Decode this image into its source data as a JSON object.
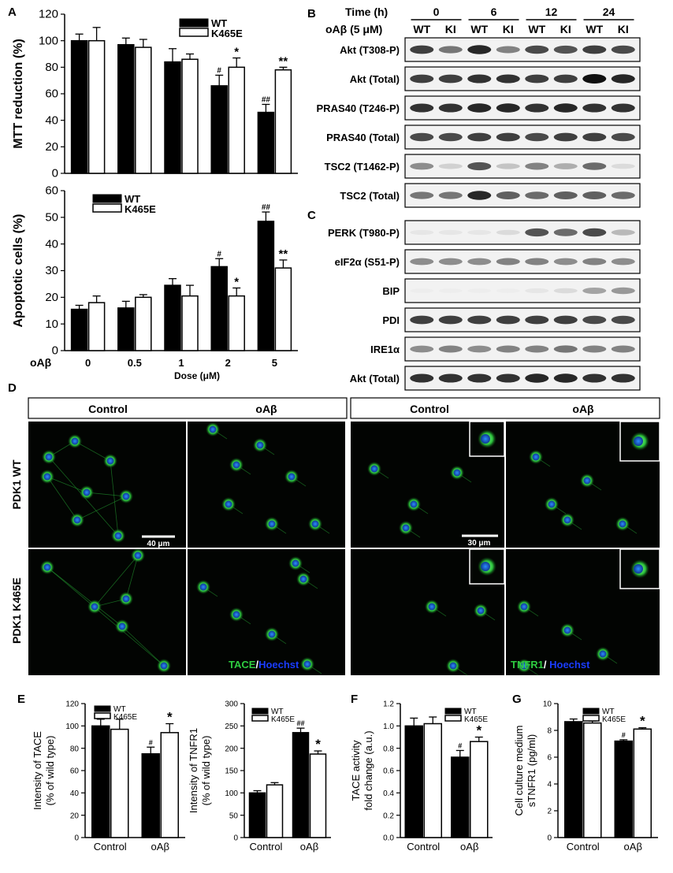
{
  "panels": {
    "A": "A",
    "B": "B",
    "C": "C",
    "D": "D",
    "E": "E",
    "F": "F",
    "G": "G"
  },
  "legend": {
    "wt": "WT",
    "ki": "K465E"
  },
  "chart_data": [
    {
      "id": "mtt",
      "type": "bar",
      "ylabel": "MTT reduction (%)",
      "ylim": [
        0,
        120
      ],
      "yticks": [
        0,
        20,
        40,
        60,
        80,
        100,
        120
      ],
      "categories": [
        "0",
        "0.5",
        "1",
        "2",
        "5"
      ],
      "series": [
        {
          "name": "WT",
          "values": [
            100,
            97,
            84,
            66,
            46
          ],
          "errors": [
            5,
            5,
            10,
            8,
            6
          ],
          "marks": [
            "",
            "",
            "",
            "#",
            "##"
          ]
        },
        {
          "name": "K465E",
          "values": [
            100,
            95,
            86,
            80,
            78
          ],
          "errors": [
            10,
            6,
            4,
            7,
            2
          ],
          "marks": [
            "",
            "",
            "",
            "*",
            "**"
          ]
        }
      ]
    },
    {
      "id": "apoptosis",
      "type": "bar",
      "ylabel": "Apoptotic cells (%)",
      "xprefix": "oAβ",
      "xlabel": "Dose  (μM)",
      "ylim": [
        0,
        60
      ],
      "yticks": [
        0,
        10,
        20,
        30,
        40,
        50,
        60
      ],
      "categories": [
        "0",
        "0.5",
        "1",
        "2",
        "5"
      ],
      "series": [
        {
          "name": "WT",
          "values": [
            15.5,
            16,
            24.5,
            31.5,
            48.5
          ],
          "errors": [
            1.5,
            2.5,
            2.5,
            3,
            3.5
          ],
          "marks": [
            "",
            "",
            "",
            "#",
            "##"
          ]
        },
        {
          "name": "K465E",
          "values": [
            18,
            20,
            20.5,
            20.5,
            31
          ],
          "errors": [
            2.5,
            1,
            4,
            3,
            3
          ],
          "marks": [
            "",
            "",
            "",
            "*",
            "**"
          ]
        }
      ]
    },
    {
      "id": "tace_intensity",
      "type": "bar",
      "ylabel": "Intensity of TACE",
      "ylabel2": "(% of wild type)",
      "ylim": [
        0,
        120
      ],
      "yticks": [
        0,
        20,
        40,
        60,
        80,
        100,
        120
      ],
      "categories": [
        "Control",
        "oAβ"
      ],
      "series": [
        {
          "name": "WT",
          "values": [
            100,
            75
          ],
          "errors": [
            6,
            6
          ],
          "marks": [
            "",
            "#"
          ]
        },
        {
          "name": "K465E",
          "values": [
            97,
            94
          ],
          "errors": [
            9,
            8
          ],
          "marks": [
            "",
            "*"
          ]
        }
      ]
    },
    {
      "id": "tnfr1_intensity",
      "type": "bar",
      "ylabel": "Intensity of TNFR1",
      "ylabel2": "(% of wild type)",
      "ylim": [
        0,
        300
      ],
      "yticks": [
        0,
        50,
        100,
        150,
        200,
        250,
        300
      ],
      "categories": [
        "Control",
        "oAβ"
      ],
      "series": [
        {
          "name": "WT",
          "values": [
            100,
            235
          ],
          "errors": [
            5,
            10
          ],
          "marks": [
            "",
            "##"
          ]
        },
        {
          "name": "K465E",
          "values": [
            118,
            187
          ],
          "errors": [
            5,
            7
          ],
          "marks": [
            "",
            "*"
          ]
        }
      ]
    },
    {
      "id": "tace_activity",
      "type": "bar",
      "ylabel": "TACE activity",
      "ylabel2": "fold change (a.u.)",
      "ylim": [
        0,
        1.2
      ],
      "yticks": [
        "0.0",
        "0.2",
        "0.4",
        "0.6",
        "0.8",
        "1.0",
        "1.2"
      ],
      "categories": [
        "Control",
        "oAβ"
      ],
      "series": [
        {
          "name": "WT",
          "values": [
            1.0,
            0.72
          ],
          "errors": [
            0.07,
            0.06
          ],
          "marks": [
            "",
            "#"
          ]
        },
        {
          "name": "K465E",
          "values": [
            1.02,
            0.86
          ],
          "errors": [
            0.06,
            0.04
          ],
          "marks": [
            "",
            "*"
          ]
        }
      ]
    },
    {
      "id": "stnfr1",
      "type": "bar",
      "ylabel": "Cell culture medium",
      "ylabel2": "sTNFR1 (pg/ml)",
      "ylim": [
        0,
        10
      ],
      "yticks": [
        0,
        2,
        4,
        6,
        8,
        10
      ],
      "categories": [
        "Control",
        "oAβ"
      ],
      "series": [
        {
          "name": "WT",
          "values": [
            8.65,
            7.2
          ],
          "errors": [
            0.2,
            0.1
          ],
          "marks": [
            "",
            "#"
          ]
        },
        {
          "name": "K465E",
          "values": [
            8.55,
            8.1
          ],
          "errors": [
            0.15,
            0.1
          ],
          "marks": [
            "",
            "*"
          ]
        }
      ]
    }
  ],
  "blots": {
    "time_label": "Time (h)",
    "times": [
      "0",
      "6",
      "12",
      "24"
    ],
    "treatment_label": "oAβ (5 μM)",
    "lanes": [
      "WT",
      "KI",
      "WT",
      "KI",
      "WT",
      "KI",
      "WT",
      "KI"
    ],
    "b_rows": [
      {
        "label": "Akt (T308-P)",
        "strength": [
          0.8,
          0.55,
          0.9,
          0.5,
          0.75,
          0.7,
          0.8,
          0.75
        ]
      },
      {
        "label": "Akt (Total)",
        "strength": [
          0.8,
          0.8,
          0.85,
          0.85,
          0.8,
          0.8,
          1.0,
          0.9
        ]
      },
      {
        "label": "PRAS40 (T246-P)",
        "strength": [
          0.85,
          0.85,
          0.9,
          0.9,
          0.85,
          0.9,
          0.85,
          0.85
        ]
      },
      {
        "label": "PRAS40 (Total)",
        "strength": [
          0.75,
          0.75,
          0.8,
          0.8,
          0.75,
          0.8,
          0.8,
          0.75
        ]
      },
      {
        "label": "TSC2 (T1462-P)",
        "strength": [
          0.45,
          0.15,
          0.7,
          0.2,
          0.5,
          0.3,
          0.6,
          0.1
        ]
      },
      {
        "label": "TSC2 (Total)",
        "strength": [
          0.55,
          0.55,
          0.9,
          0.65,
          0.6,
          0.65,
          0.65,
          0.6
        ]
      }
    ],
    "c_rows": [
      {
        "label": "PERK (T980-P)",
        "strength": [
          0.05,
          0.05,
          0.05,
          0.1,
          0.7,
          0.6,
          0.75,
          0.25
        ]
      },
      {
        "label": "eIF2α (S51-P)",
        "strength": [
          0.45,
          0.45,
          0.45,
          0.5,
          0.5,
          0.45,
          0.5,
          0.45
        ]
      },
      {
        "label": "BIP",
        "strength": [
          0.0,
          0.0,
          0.0,
          0.0,
          0.05,
          0.1,
          0.35,
          0.4
        ]
      },
      {
        "label": "PDI",
        "strength": [
          0.8,
          0.8,
          0.8,
          0.8,
          0.8,
          0.8,
          0.75,
          0.75
        ]
      },
      {
        "label": "IRE1α",
        "strength": [
          0.45,
          0.5,
          0.45,
          0.5,
          0.5,
          0.55,
          0.5,
          0.5
        ]
      },
      {
        "label": "Akt (Total)",
        "strength": [
          0.85,
          0.85,
          0.85,
          0.85,
          0.9,
          0.9,
          0.85,
          0.85
        ]
      }
    ]
  },
  "micro": {
    "left_header": [
      "Control",
      "oAβ"
    ],
    "right_header": [
      "Control",
      "oAβ"
    ],
    "rows": [
      "PDK1 WT",
      "PDK1 K465E"
    ],
    "scale_left": "40 μm",
    "scale_right": "30 μm",
    "stain_left": {
      "target": "TACE",
      "sep": "/",
      "counter": "Hoechst"
    },
    "stain_right": {
      "target": "TNFR1",
      "sep": "/ ",
      "counter": "Hoechst"
    },
    "colors": {
      "green": "#2ecc40",
      "blue": "#1a3cff"
    }
  },
  "colors": {
    "wt": "#000000",
    "ki": "#ffffff",
    "axis": "#000000"
  }
}
